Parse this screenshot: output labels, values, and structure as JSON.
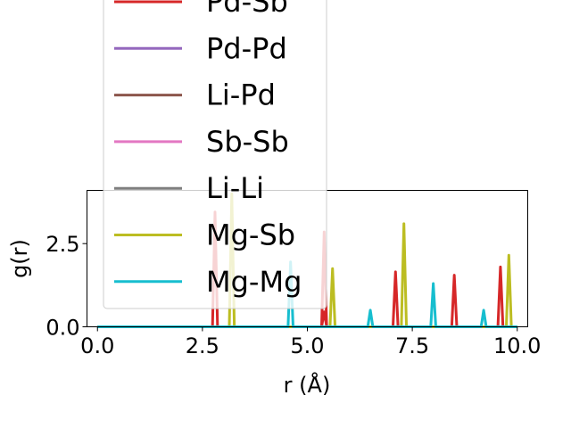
{
  "chart_data": {
    "type": "line",
    "title": "",
    "xlabel": "r (Å)",
    "ylabel": "g(r)",
    "xlim": [
      -0.25,
      10.25
    ],
    "ylim": [
      0,
      4.1
    ],
    "xticks": [
      0.0,
      2.5,
      5.0,
      7.5,
      10.0
    ],
    "xtick_labels": [
      "0.0",
      "2.5",
      "5.0",
      "7.5",
      "10.0"
    ],
    "yticks": [
      0.0,
      2.5
    ],
    "ytick_labels": [
      "0.0",
      "2.5"
    ],
    "grid": false,
    "legend_position": "upper-left",
    "series": [
      {
        "name": "Pd-Sb",
        "color": "#d62728",
        "peaks": [
          [
            5.4,
            0.45
          ],
          [
            7.1,
            1.65
          ],
          [
            8.5,
            1.55
          ],
          [
            9.6,
            1.8
          ]
        ]
      },
      {
        "name": "Pd-Pd",
        "color": "#9467bd",
        "peaks": []
      },
      {
        "name": "Li-Pd",
        "color": "#8c564b",
        "peaks": []
      },
      {
        "name": "Sb-Sb",
        "color": "#e377c2",
        "peaks": []
      },
      {
        "name": "Li-Li",
        "color": "#7f7f7f",
        "peaks": []
      },
      {
        "name": "Mg-Sb",
        "color": "#bcbd22",
        "peaks": [
          [
            5.6,
            1.75
          ],
          [
            7.3,
            3.1
          ],
          [
            9.8,
            2.15
          ]
        ]
      },
      {
        "name": "Mg-Mg",
        "color": "#17becf",
        "peaks": [
          [
            4.6,
            1.95
          ],
          [
            6.5,
            0.5
          ],
          [
            8.0,
            1.3
          ],
          [
            9.2,
            0.5
          ]
        ]
      }
    ],
    "hidden_series_peaks": [
      {
        "color": "#d62728",
        "peaks": [
          [
            2.8,
            3.45
          ],
          [
            5.4,
            2.85
          ]
        ]
      },
      {
        "color": "#bcbd22",
        "peaks": [
          [
            3.2,
            4.0
          ]
        ]
      }
    ]
  }
}
